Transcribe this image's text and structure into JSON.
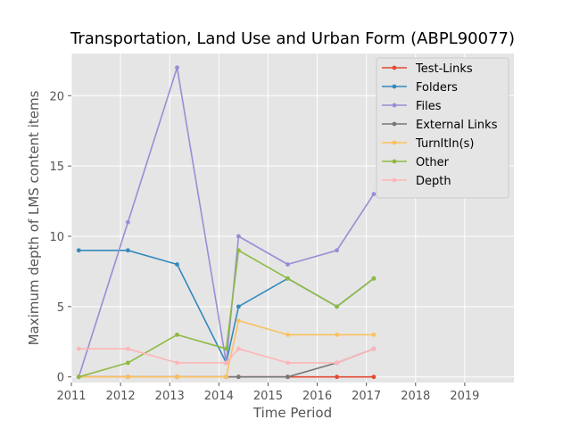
{
  "chart_data": {
    "type": "line",
    "title": "Transportation, Land Use and Urban Form (ABPL90077)",
    "xlabel": "Time Period",
    "ylabel": "Maximum depth of LMS content items",
    "xlim": [
      2011.0,
      2020.0
    ],
    "ylim": [
      -0.4,
      23.0
    ],
    "x_ticks": [
      2011,
      2012,
      2013,
      2014,
      2015,
      2016,
      2017,
      2018,
      2019
    ],
    "y_ticks": [
      0,
      5,
      10,
      15,
      20
    ],
    "grid": true,
    "legend_position": "top-right",
    "x": [
      2011.15,
      2012.15,
      2013.15,
      2014.15,
      2014.4,
      2015.4,
      2016.4,
      2017.15
    ],
    "series": [
      {
        "name": "Test-Links",
        "color": "#E24A33",
        "values": [
          0,
          0,
          0,
          0,
          0,
          0,
          0,
          0
        ]
      },
      {
        "name": "Folders",
        "color": "#348ABD",
        "values": [
          9,
          9,
          8,
          1,
          5,
          7,
          5,
          7
        ]
      },
      {
        "name": "Files",
        "color": "#988ED5",
        "values": [
          0,
          11,
          22,
          1,
          10,
          8,
          9,
          13
        ]
      },
      {
        "name": "External Links",
        "color": "#777777",
        "values": [
          0,
          0,
          0,
          0,
          0,
          0,
          1,
          2
        ]
      },
      {
        "name": "TurnItIn(s)",
        "color": "#FBC15E",
        "values": [
          0,
          0,
          0,
          0,
          4,
          3,
          3,
          3
        ]
      },
      {
        "name": "Other",
        "color": "#8EBA42",
        "values": [
          0,
          1,
          3,
          2,
          9,
          7,
          5,
          7
        ]
      },
      {
        "name": "Depth",
        "color": "#FFB5B8",
        "values": [
          2,
          2,
          1,
          1,
          2,
          1,
          1,
          2
        ]
      }
    ]
  }
}
